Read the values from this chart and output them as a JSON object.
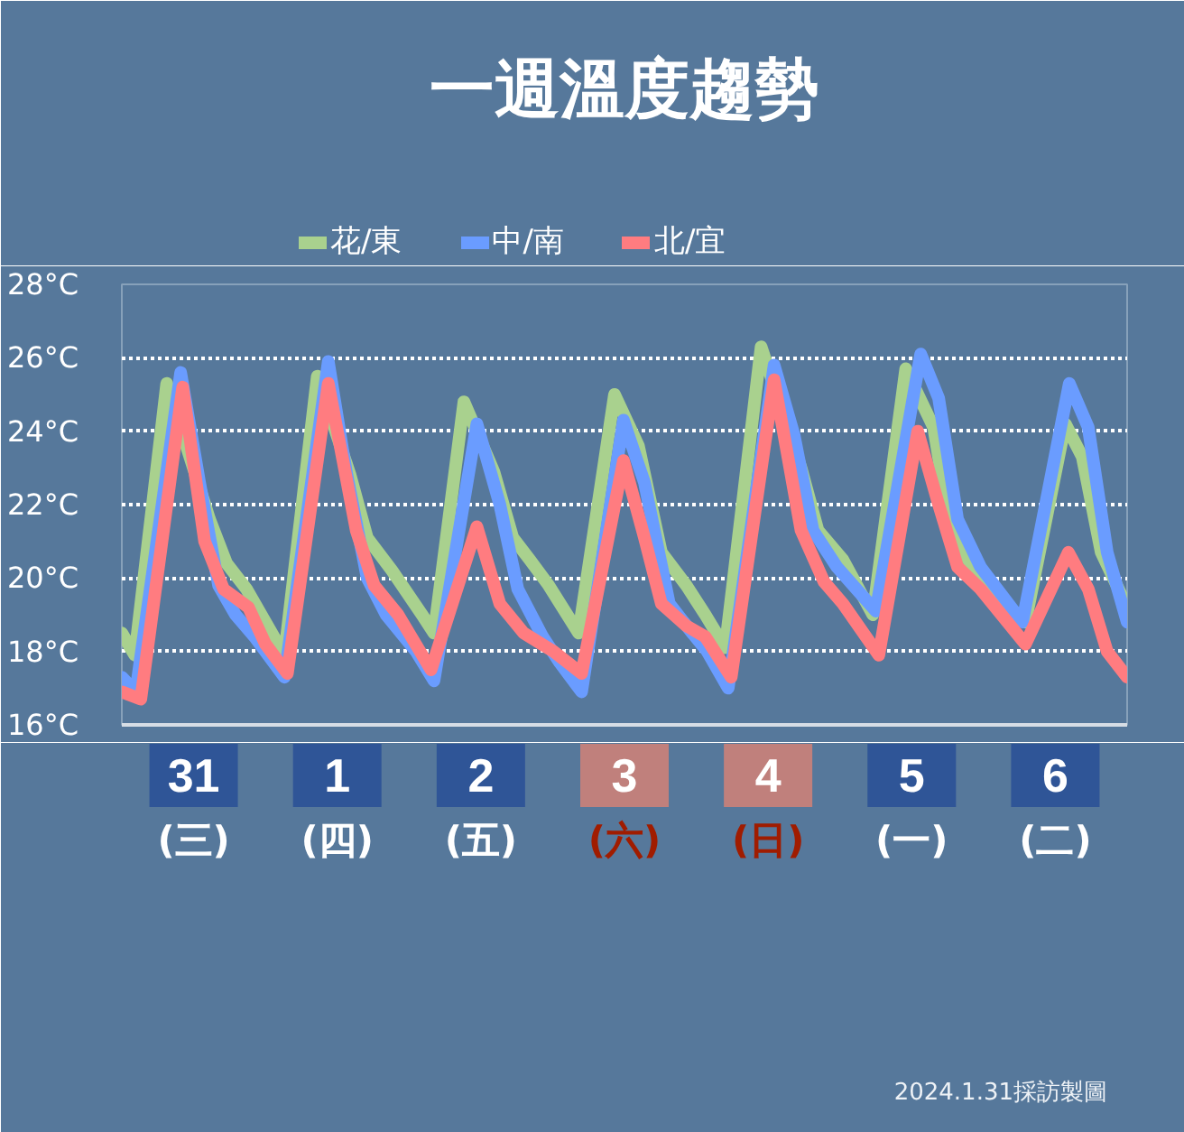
{
  "chart_data": {
    "type": "line",
    "title": "一週溫度趨勢",
    "xlim": [
      "2024-01-31T00:00",
      "2024-02-07T00:00"
    ],
    "xticks": [
      {
        "value": "2024-01-31T12:00",
        "label": "31"
      },
      {
        "value": "2024-02-01T12:00",
        "label": "1"
      },
      {
        "value": "2024-02-02T12:00",
        "label": "2"
      },
      {
        "value": "2024-02-03T12:00",
        "label": "3"
      },
      {
        "value": "2024-02-04T12:00",
        "label": "4"
      },
      {
        "value": "2024-02-05T12:00",
        "label": "5"
      },
      {
        "value": "2024-02-06T12:00",
        "label": "6"
      }
    ],
    "ylim": [
      16,
      28
    ],
    "yticks": [
      {
        "value": 16,
        "label": "16°C"
      },
      {
        "value": 18,
        "label": "18°C"
      },
      {
        "value": 20,
        "label": "20°C"
      },
      {
        "value": 22,
        "label": "22°C"
      },
      {
        "value": 24,
        "label": "24°C"
      },
      {
        "value": 26,
        "label": "26°C"
      },
      {
        "value": 28,
        "label": "28°C"
      }
    ],
    "grid": "y",
    "legend": "top",
    "series": [
      {
        "name": "花/東",
        "color": "#a9d18e",
        "x": [
          "2024-01-31T00:00",
          "2024-01-31T02:10",
          "2024-01-31T07:30",
          "2024-01-31T14:40",
          "2024-01-31T17:30",
          "2024-01-31T20:50",
          "2024-02-01T03:10",
          "2024-02-01T08:40",
          "2024-02-01T14:10",
          "2024-02-01T17:00",
          "2024-02-01T21:10",
          "2024-02-02T02:10",
          "2024-02-02T04:10",
          "2024-02-02T09:10",
          "2024-02-02T14:10",
          "2024-02-02T17:20",
          "2024-02-02T20:10",
          "2024-02-02T23:20",
          "2024-02-03T04:20",
          "2024-02-03T10:20",
          "2024-02-03T14:20",
          "2024-02-03T18:10",
          "2024-02-03T22:20",
          "2024-02-04T01:30",
          "2024-02-04T04:50",
          "2024-02-04T10:50",
          "2024-02-04T17:30",
          "2024-02-04T20:20",
          "2024-02-05T00:30",
          "2024-02-05T05:30",
          "2024-02-05T11:00",
          "2024-02-05T15:40",
          "2024-02-05T18:30",
          "2024-02-05T22:30",
          "2024-02-06T02:20",
          "2024-02-06T07:00",
          "2024-02-06T13:40",
          "2024-02-06T16:30",
          "2024-02-06T19:40",
          "2024-02-07T00:00"
        ],
        "values": [
          18.5,
          17.9,
          25.3,
          21.6,
          20.4,
          19.7,
          17.9,
          25.5,
          22.8,
          21.1,
          20.2,
          19.0,
          18.5,
          24.8,
          22.9,
          21.1,
          20.5,
          19.8,
          18.5,
          25.0,
          23.6,
          20.7,
          19.8,
          19.0,
          18.1,
          26.3,
          23.0,
          21.3,
          20.5,
          19.0,
          25.7,
          24.1,
          21.3,
          20.2,
          19.5,
          18.8,
          24.2,
          23.3,
          20.7,
          19.2
        ]
      },
      {
        "name": "中/南",
        "color": "#6a9cff",
        "x": [
          "2024-01-31T00:00",
          "2024-01-31T02:20",
          "2024-01-31T09:50",
          "2024-01-31T13:00",
          "2024-01-31T16:10",
          "2024-01-31T19:00",
          "2024-01-31T22:10",
          "2024-02-01T03:10",
          "2024-02-01T10:30",
          "2024-02-01T13:30",
          "2024-02-01T17:00",
          "2024-02-01T20:10",
          "2024-02-02T01:10",
          "2024-02-02T04:10",
          "2024-02-02T11:20",
          "2024-02-02T15:10",
          "2024-02-02T18:10",
          "2024-02-02T22:20",
          "2024-02-03T01:10",
          "2024-02-03T04:50",
          "2024-02-03T11:50",
          "2024-02-03T15:20",
          "2024-02-03T19:30",
          "2024-02-03T23:20",
          "2024-02-04T01:50",
          "2024-02-04T05:20",
          "2024-02-04T13:00",
          "2024-02-04T16:20",
          "2024-02-04T19:30",
          "2024-02-04T23:30",
          "2024-02-05T06:00",
          "2024-02-05T13:30",
          "2024-02-05T16:30",
          "2024-02-05T19:40",
          "2024-02-05T23:30",
          "2024-02-06T06:30",
          "2024-02-06T14:20",
          "2024-02-06T17:30",
          "2024-02-06T20:40",
          "2024-02-07T00:00"
        ],
        "values": [
          17.3,
          16.9,
          25.6,
          22.6,
          19.8,
          19.0,
          18.4,
          17.3,
          25.9,
          22.9,
          20.0,
          19.0,
          18.0,
          17.2,
          24.2,
          22.0,
          19.7,
          18.4,
          17.7,
          16.9,
          24.3,
          22.6,
          19.3,
          18.5,
          18.0,
          17.0,
          25.8,
          23.9,
          21.3,
          20.3,
          19.1,
          26.1,
          24.9,
          21.6,
          20.3,
          18.8,
          25.3,
          24.1,
          20.7,
          18.8
        ]
      },
      {
        "name": "北/宜",
        "color": "#ff7c80",
        "x": [
          "2024-01-31T00:00",
          "2024-01-31T03:10",
          "2024-01-31T10:10",
          "2024-01-31T13:50",
          "2024-01-31T17:00",
          "2024-01-31T21:10",
          "2024-02-01T00:00",
          "2024-02-01T03:40",
          "2024-02-01T10:30",
          "2024-02-01T15:10",
          "2024-02-01T18:10",
          "2024-02-01T22:10",
          "2024-02-02T03:40",
          "2024-02-02T11:20",
          "2024-02-02T15:10",
          "2024-02-02T19:10",
          "2024-02-03T00:10",
          "2024-02-03T04:50",
          "2024-02-03T11:50",
          "2024-02-03T15:20",
          "2024-02-03T18:10",
          "2024-02-03T22:20",
          "2024-02-04T01:30",
          "2024-02-04T05:50",
          "2024-02-04T13:00",
          "2024-02-04T17:30",
          "2024-02-04T21:20",
          "2024-02-05T00:30",
          "2024-02-05T06:30",
          "2024-02-05T13:00",
          "2024-02-05T16:30",
          "2024-02-05T19:40",
          "2024-02-05T23:30",
          "2024-02-06T07:00",
          "2024-02-06T14:10",
          "2024-02-06T17:30",
          "2024-02-06T20:40",
          "2024-02-07T00:00"
        ],
        "values": [
          16.9,
          16.7,
          25.2,
          21.0,
          19.7,
          19.2,
          18.2,
          17.4,
          25.3,
          21.3,
          19.8,
          19.0,
          17.5,
          21.4,
          19.3,
          18.5,
          18.0,
          17.4,
          23.2,
          21.1,
          19.3,
          18.7,
          18.4,
          17.3,
          25.4,
          21.3,
          19.9,
          19.3,
          17.9,
          24.0,
          22.0,
          20.3,
          19.7,
          18.2,
          20.7,
          19.7,
          18.0,
          17.3
        ]
      }
    ],
    "annotations": [
      "(三)",
      "(四)",
      "(五)",
      "(六)",
      "(日)",
      "(一)",
      "(二)",
      "2024.1.31採訪製圖"
    ]
  }
}
